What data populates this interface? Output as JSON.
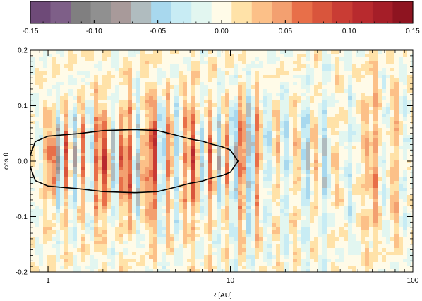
{
  "chart_data": {
    "type": "heatmap",
    "colorbar": {
      "range": [
        -0.15,
        0.15
      ],
      "tick_labels": [
        "-0.15",
        "-0.10",
        "-0.05",
        "0.00",
        "0.05",
        "0.10",
        "0.15"
      ],
      "tick_values": [
        -0.15,
        -0.1,
        -0.05,
        0.0,
        0.05,
        0.1,
        0.15
      ],
      "colors": [
        "#6e4a78",
        "#7e5f88",
        "#807f80",
        "#909090",
        "#a89a9a",
        "#b0bcbf",
        "#a8d8ee",
        "#c8ecf4",
        "#e2f6f0",
        "#fffbe8",
        "#ffe2a8",
        "#fcc088",
        "#f3a070",
        "#e86f49",
        "#d9553c",
        "#c93c34",
        "#b82a2e",
        "#a51e28",
        "#8e1420"
      ]
    },
    "xaxis": {
      "label": "R [AU]",
      "scale": "log",
      "range": [
        0.8,
        100
      ],
      "tick_values": [
        1,
        10,
        100
      ],
      "tick_labels": [
        "1",
        "10",
        "100"
      ]
    },
    "yaxis": {
      "label": "cos θ",
      "range": [
        -0.2,
        0.2
      ],
      "tick_values": [
        -0.2,
        -0.1,
        0.0,
        0.1,
        0.2
      ],
      "tick_labels": [
        "-0.2",
        "-0.1",
        "0.0",
        "0.1",
        "0.2"
      ]
    },
    "contour": {
      "color": "#000000",
      "x_range": [
        0.78,
        11
      ],
      "half_width_at_R": [
        [
          0.78,
          0.0
        ],
        [
          0.85,
          0.035
        ],
        [
          1.0,
          0.045
        ],
        [
          1.5,
          0.05
        ],
        [
          2.0,
          0.055
        ],
        [
          3.0,
          0.057
        ],
        [
          4.0,
          0.055
        ],
        [
          5.0,
          0.047
        ],
        [
          6.0,
          0.04
        ],
        [
          7.0,
          0.036
        ],
        [
          8.0,
          0.03
        ],
        [
          9.0,
          0.026
        ],
        [
          10.0,
          0.02
        ],
        [
          11.0,
          0.0
        ]
      ]
    },
    "grid": false
  }
}
